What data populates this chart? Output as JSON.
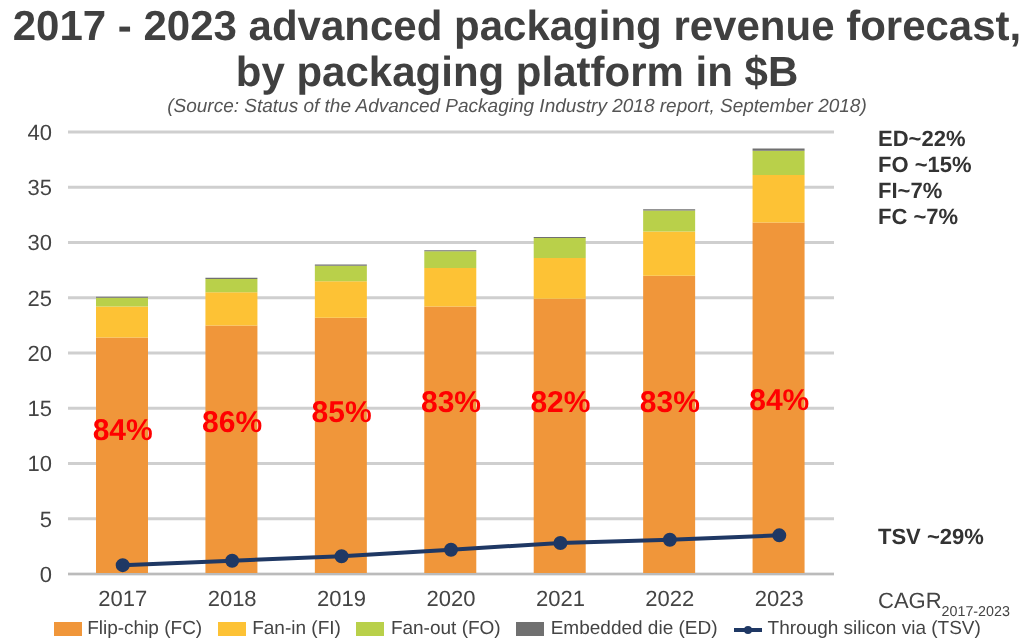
{
  "chart_data": {
    "type": "bar",
    "title": "2017 - 2023 advanced packaging revenue forecast, by packaging platform in $B",
    "subtitle": "(Source: Status of the Advanced Packaging Industry 2018 report, September 2018)",
    "categories": [
      "2017",
      "2018",
      "2019",
      "2020",
      "2021",
      "2022",
      "2023"
    ],
    "stacked": true,
    "series": [
      {
        "name": "Flip-chip (FC)",
        "color": "#f0963a",
        "values": [
          21.4,
          22.5,
          23.2,
          24.2,
          24.9,
          27.0,
          31.8
        ]
      },
      {
        "name": "Fan-in (FI)",
        "color": "#fdc235",
        "values": [
          2.8,
          3.0,
          3.3,
          3.5,
          3.7,
          4.0,
          4.3
        ]
      },
      {
        "name": "Fan-out (FO)",
        "color": "#b9d04a",
        "values": [
          0.8,
          1.2,
          1.4,
          1.5,
          1.8,
          1.9,
          2.2
        ]
      },
      {
        "name": "Embedded die (ED)",
        "color": "#707070",
        "values": [
          0.1,
          0.1,
          0.1,
          0.1,
          0.1,
          0.1,
          0.2
        ]
      },
      {
        "name": "Through silicon via (TSV)",
        "type": "line",
        "color": "#1f3864",
        "values": [
          0.8,
          1.2,
          1.6,
          2.2,
          2.8,
          3.1,
          3.5
        ]
      }
    ],
    "ylim": [
      0,
      40
    ],
    "yticks": [
      0,
      5,
      10,
      15,
      20,
      25,
      30,
      35,
      40
    ],
    "grid": "y",
    "legend": "bottom",
    "marker": "circle",
    "annotations": [
      "84%",
      "86%",
      "85%",
      "83%",
      "82%",
      "83%",
      "84%",
      "ED~22%",
      "FO ~15%",
      "FI~7%",
      "FC ~7%",
      "TSV ~29%",
      "CAGR$_{2017-2023}$"
    ]
  }
}
